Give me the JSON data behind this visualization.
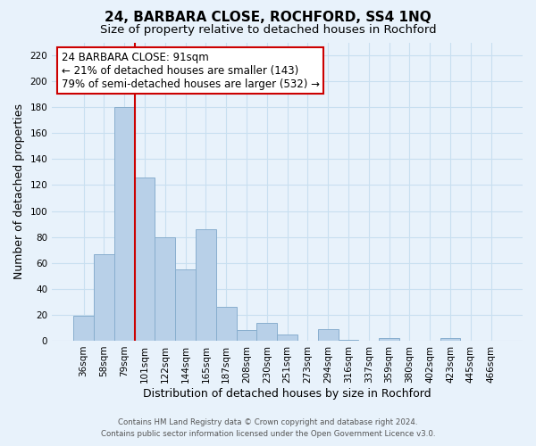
{
  "title": "24, BARBARA CLOSE, ROCHFORD, SS4 1NQ",
  "subtitle": "Size of property relative to detached houses in Rochford",
  "xlabel": "Distribution of detached houses by size in Rochford",
  "ylabel": "Number of detached properties",
  "footer_line1": "Contains HM Land Registry data © Crown copyright and database right 2024.",
  "footer_line2": "Contains public sector information licensed under the Open Government Licence v3.0.",
  "bar_labels": [
    "36sqm",
    "58sqm",
    "79sqm",
    "101sqm",
    "122sqm",
    "144sqm",
    "165sqm",
    "187sqm",
    "208sqm",
    "230sqm",
    "251sqm",
    "273sqm",
    "294sqm",
    "316sqm",
    "337sqm",
    "359sqm",
    "380sqm",
    "402sqm",
    "423sqm",
    "445sqm",
    "466sqm"
  ],
  "bar_values": [
    19,
    67,
    180,
    126,
    80,
    55,
    86,
    26,
    8,
    14,
    5,
    0,
    9,
    1,
    0,
    2,
    0,
    0,
    2,
    0,
    0
  ],
  "bar_color": "#b8d0e8",
  "bar_edge_color": "#88aece",
  "grid_color": "#c8dff0",
  "background_color": "#e8f2fb",
  "vline_color": "#cc0000",
  "vline_position": 3,
  "ylim_max": 230,
  "yticks": [
    0,
    20,
    40,
    60,
    80,
    100,
    120,
    140,
    160,
    180,
    200,
    220
  ],
  "annotation_title": "24 BARBARA CLOSE: 91sqm",
  "annotation_line1": "← 21% of detached houses are smaller (143)",
  "annotation_line2": "79% of semi-detached houses are larger (532) →",
  "annotation_box_color": "#ffffff",
  "annotation_box_edge": "#cc0000",
  "title_fontsize": 11,
  "subtitle_fontsize": 9.5,
  "axis_label_fontsize": 9,
  "tick_fontsize": 7.5,
  "annotation_fontsize": 8.5
}
